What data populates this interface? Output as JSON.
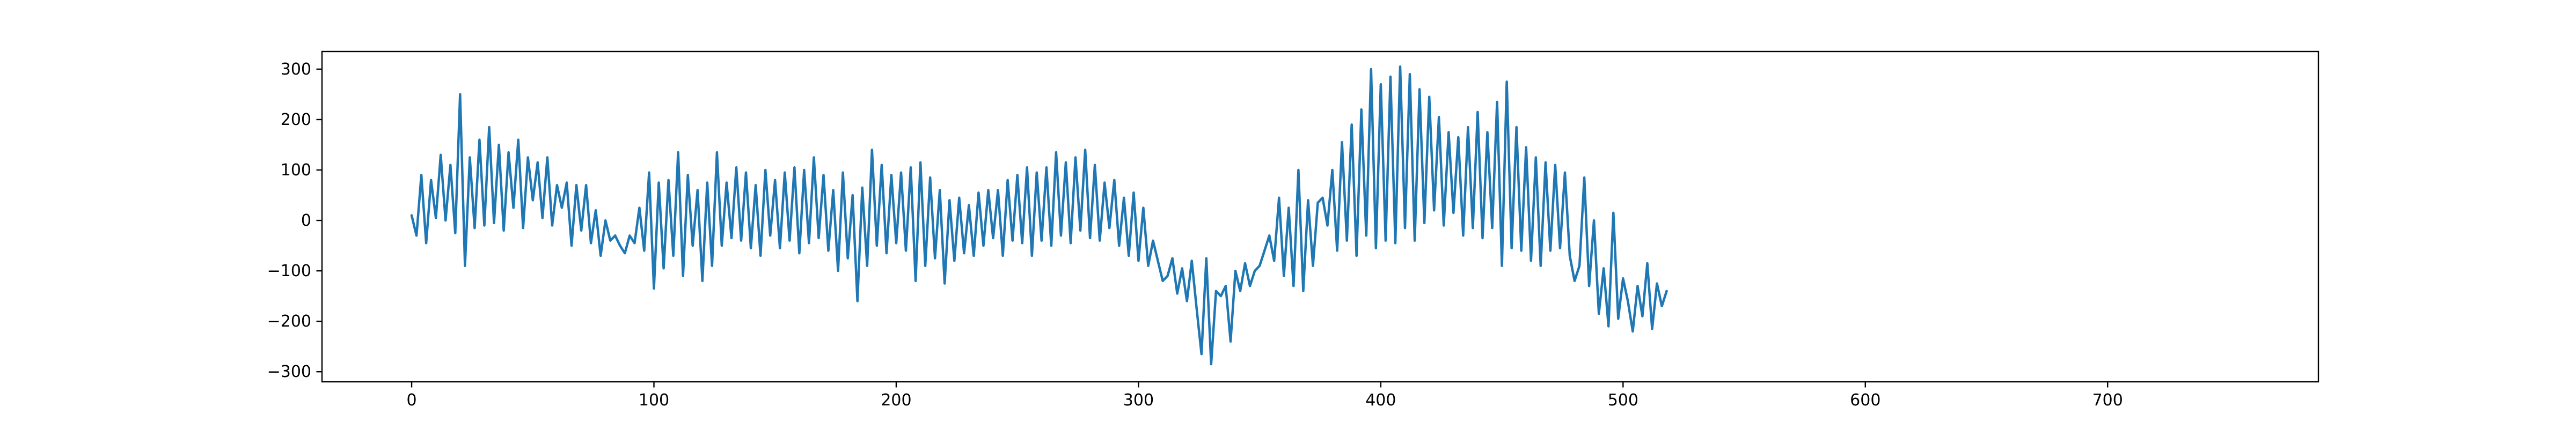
{
  "chart_data": {
    "type": "line",
    "title": "",
    "xlabel": "",
    "ylabel": "",
    "xlim": [
      -37,
      787
    ],
    "ylim": [
      -320,
      335
    ],
    "x_ticks": [
      0,
      100,
      200,
      300,
      400,
      500,
      600,
      700
    ],
    "y_ticks": [
      -300,
      -200,
      -100,
      0,
      100,
      200,
      300
    ],
    "grid": false,
    "legend": "none",
    "line_color": "#1f77b4",
    "series": [
      {
        "x_start": 0,
        "x_step": 2,
        "values": [
          10,
          -30,
          90,
          -45,
          80,
          5,
          130,
          0,
          110,
          -25,
          250,
          -90,
          125,
          -15,
          160,
          -10,
          185,
          -5,
          150,
          -20,
          135,
          25,
          160,
          -15,
          125,
          40,
          115,
          5,
          125,
          -10,
          70,
          25,
          75,
          -50,
          70,
          -20,
          70,
          -45,
          20,
          -70,
          0,
          -40,
          -30,
          -50,
          -65,
          -30,
          -45,
          25,
          -60,
          95,
          -135,
          75,
          -95,
          80,
          -70,
          135,
          -110,
          90,
          -50,
          60,
          -120,
          75,
          -90,
          135,
          -50,
          75,
          -35,
          105,
          -40,
          95,
          -55,
          70,
          -70,
          100,
          -30,
          80,
          -55,
          95,
          -40,
          105,
          -65,
          100,
          -45,
          125,
          -35,
          90,
          -60,
          60,
          -100,
          95,
          -75,
          50,
          -160,
          65,
          -90,
          140,
          -50,
          110,
          -65,
          90,
          -45,
          95,
          -60,
          105,
          -120,
          115,
          -90,
          85,
          -75,
          60,
          -125,
          40,
          -80,
          45,
          -65,
          30,
          -70,
          55,
          -50,
          60,
          -35,
          60,
          -70,
          80,
          -40,
          90,
          -45,
          105,
          -70,
          95,
          -40,
          105,
          -50,
          135,
          -30,
          115,
          -45,
          125,
          -20,
          140,
          -35,
          110,
          -40,
          75,
          -15,
          80,
          -50,
          45,
          -70,
          55,
          -80,
          25,
          -90,
          -40,
          -80,
          -120,
          -110,
          -75,
          -145,
          -95,
          -160,
          -80,
          -175,
          -265,
          -75,
          -285,
          -140,
          -150,
          -130,
          -240,
          -100,
          -140,
          -85,
          -130,
          -100,
          -90,
          -60,
          -30,
          -80,
          45,
          -110,
          25,
          -130,
          100,
          -140,
          40,
          -90,
          35,
          45,
          -10,
          100,
          -60,
          155,
          -40,
          190,
          -70,
          220,
          -30,
          300,
          -55,
          270,
          -40,
          285,
          -45,
          305,
          -15,
          290,
          -40,
          260,
          -5,
          245,
          20,
          205,
          -10,
          175,
          15,
          165,
          -30,
          185,
          -15,
          215,
          -35,
          175,
          -15,
          235,
          -90,
          275,
          -55,
          185,
          -60,
          145,
          -80,
          125,
          -90,
          115,
          -60,
          110,
          -55,
          95,
          -70,
          -120,
          -90,
          85,
          -130,
          0,
          -185,
          -95,
          -210,
          15,
          -195,
          -115,
          -160,
          -220,
          -130,
          -190,
          -85,
          -215,
          -125,
          -170,
          -140
        ]
      }
    ]
  }
}
